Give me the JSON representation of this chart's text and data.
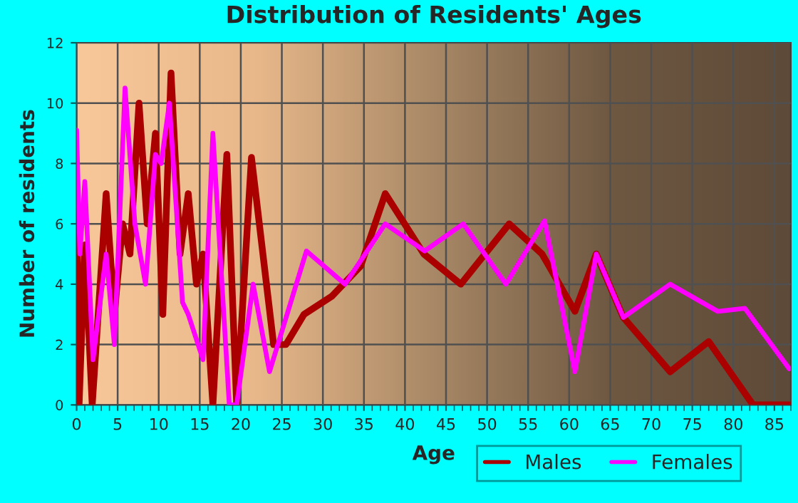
{
  "chart_data": {
    "type": "line",
    "title": "Distribution of Residents' Ages",
    "xlabel": "Age",
    "ylabel": "Number of residents",
    "xlim": [
      0,
      87
    ],
    "ylim": [
      0,
      12
    ],
    "xticks": [
      0,
      5,
      10,
      15,
      20,
      25,
      30,
      35,
      40,
      45,
      50,
      55,
      60,
      65,
      70,
      75,
      80,
      85
    ],
    "yticks": [
      0,
      2,
      4,
      6,
      8,
      10,
      12
    ],
    "grid": true,
    "legend": "bottom right",
    "line_style": "solid",
    "series": [
      {
        "name": "Males",
        "color": "#aa0000",
        "x": [
          0,
          0.3,
          1.0,
          1.9,
          3.6,
          4.6,
          5.6,
          6.5,
          7.6,
          8.6,
          9.6,
          10.5,
          11.5,
          12.6,
          13.6,
          14.6,
          15.4,
          16.6,
          18.3,
          19.5,
          21.3,
          24.0,
          25.5,
          27.7,
          31.1,
          34.6,
          37.6,
          42.3,
          46.8,
          52.7,
          56.7,
          60.7,
          63.3,
          66.6,
          72.3,
          77.0,
          82.4,
          86.8
        ],
        "values": [
          7,
          0,
          5.3,
          0,
          7,
          3,
          6,
          5,
          10,
          6,
          9,
          3,
          11,
          5,
          7,
          4,
          5,
          0,
          8.3,
          0,
          8.2,
          2,
          2,
          3,
          3.6,
          4.6,
          7,
          5,
          4,
          6,
          5,
          3.1,
          5,
          2.9,
          1.1,
          2.1,
          0,
          0
        ]
      },
      {
        "name": "Females",
        "color": "#ff00ff",
        "x": [
          0,
          0.4,
          1.0,
          2.0,
          3.6,
          4.6,
          5.9,
          7.1,
          8.4,
          9.6,
          10.3,
          11.3,
          12.9,
          13.6,
          15.4,
          16.6,
          18.6,
          19.5,
          21.5,
          23.5,
          28.0,
          32.7,
          37.6,
          42.4,
          47.1,
          52.3,
          57.0,
          60.7,
          63.3,
          66.6,
          72.3,
          78.1,
          81.4,
          86.8
        ],
        "values": [
          9.1,
          5,
          7.4,
          1.5,
          5,
          2,
          10.5,
          6,
          4,
          8.3,
          8,
          10,
          3.4,
          3,
          1.5,
          9,
          0,
          0,
          4,
          1.1,
          5.1,
          4,
          6,
          5.1,
          6,
          4,
          6.1,
          1.1,
          5,
          2.9,
          4,
          3.1,
          3.2,
          1.2
        ]
      }
    ]
  }
}
